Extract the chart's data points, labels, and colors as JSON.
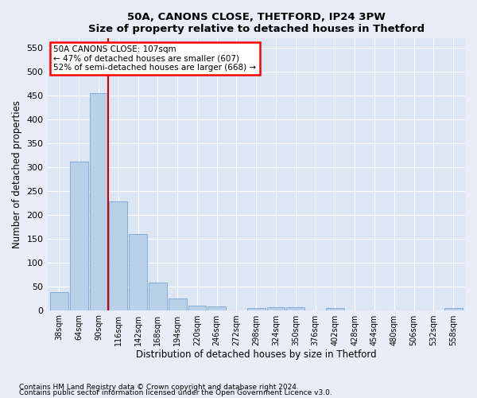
{
  "title": "50A, CANONS CLOSE, THETFORD, IP24 3PW",
  "subtitle": "Size of property relative to detached houses in Thetford",
  "xlabel": "Distribution of detached houses by size in Thetford",
  "ylabel": "Number of detached properties",
  "bar_color": "#b8d0e8",
  "bar_edge_color": "#6699cc",
  "background_color": "#dde6f3",
  "fig_background": "#e8edf7",
  "annotation_text": "50A CANONS CLOSE: 107sqm\n← 47% of detached houses are smaller (607)\n52% of semi-detached houses are larger (668) →",
  "vline_color": "#cc0000",
  "vline_pos": 2.5,
  "categories": [
    "38sqm",
    "64sqm",
    "90sqm",
    "116sqm",
    "142sqm",
    "168sqm",
    "194sqm",
    "220sqm",
    "246sqm",
    "272sqm",
    "298sqm",
    "324sqm",
    "350sqm",
    "376sqm",
    "402sqm",
    "428sqm",
    "454sqm",
    "480sqm",
    "506sqm",
    "532sqm",
    "558sqm"
  ],
  "values": [
    38,
    311,
    456,
    228,
    160,
    58,
    25,
    10,
    8,
    0,
    4,
    6,
    6,
    0,
    5,
    0,
    0,
    0,
    0,
    0,
    4
  ],
  "ylim": [
    0,
    570
  ],
  "yticks": [
    0,
    50,
    100,
    150,
    200,
    250,
    300,
    350,
    400,
    450,
    500,
    550
  ],
  "footnote1": "Contains HM Land Registry data © Crown copyright and database right 2024.",
  "footnote2": "Contains public sector information licensed under the Open Government Licence v3.0."
}
